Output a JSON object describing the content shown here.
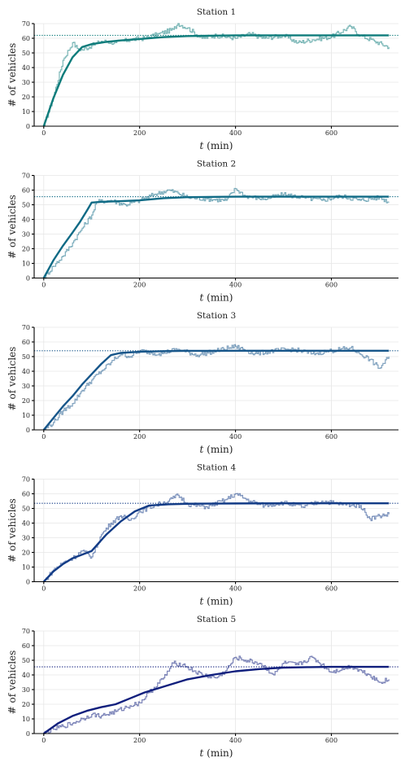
{
  "colors": {
    "station_1": "#0e7c7b",
    "station_2": "#0f6a85",
    "station_3": "#17568a",
    "station_4": "#123b86",
    "station_5": "#101f7d"
  },
  "chart_data": [
    {
      "type": "line",
      "title": "Station 1",
      "xlabel": "t (min)",
      "ylabel": "# of vehicles",
      "xlim": [
        -20,
        740
      ],
      "ylim": [
        0,
        70
      ],
      "xticks": [
        0,
        200,
        400,
        600
      ],
      "yticks": [
        0,
        10,
        20,
        30,
        40,
        50,
        60,
        70
      ],
      "grid": true,
      "reference_level": 62,
      "mean_curve": {
        "x": [
          0,
          20,
          40,
          60,
          80,
          100,
          130,
          160,
          200,
          250,
          300,
          400,
          500,
          600,
          720
        ],
        "y": [
          0,
          19,
          35,
          47,
          54,
          56,
          57.5,
          58.5,
          59.5,
          60.8,
          61.5,
          62,
          62,
          62,
          62
        ]
      },
      "simulation": {
        "x": [
          0,
          20,
          40,
          60,
          70,
          80,
          100,
          120,
          150,
          180,
          210,
          240,
          270,
          280,
          300,
          330,
          360,
          400,
          430,
          460,
          500,
          530,
          560,
          600,
          640,
          660,
          690,
          720
        ],
        "y": [
          0,
          20,
          45,
          57,
          53,
          52,
          55,
          58,
          57,
          59,
          60,
          63,
          66,
          70,
          67,
          60,
          62,
          60,
          63,
          60,
          62,
          57,
          59,
          61,
          68,
          62,
          58,
          54
        ]
      }
    },
    {
      "type": "line",
      "title": "Station 2",
      "xlabel": "t (min)",
      "ylabel": "# of vehicles",
      "xlim": [
        -20,
        740
      ],
      "ylim": [
        0,
        70
      ],
      "xticks": [
        0,
        200,
        400,
        600
      ],
      "yticks": [
        0,
        10,
        20,
        30,
        40,
        50,
        60,
        70
      ],
      "grid": true,
      "reference_level": 55.5,
      "mean_curve": {
        "x": [
          0,
          20,
          40,
          60,
          75,
          90,
          100,
          120,
          150,
          200,
          250,
          300,
          400,
          500,
          600,
          720
        ],
        "y": [
          0,
          12,
          22,
          31,
          38,
          46,
          51.5,
          52,
          52.3,
          53,
          54.5,
          55.2,
          55.5,
          55.5,
          55.5,
          55.5
        ]
      },
      "simulation": {
        "x": [
          0,
          20,
          40,
          60,
          80,
          100,
          110,
          140,
          170,
          200,
          230,
          260,
          280,
          300,
          340,
          380,
          400,
          420,
          460,
          500,
          540,
          580,
          620,
          660,
          700,
          720
        ],
        "y": [
          0,
          8,
          15,
          24,
          34,
          43,
          52,
          53,
          50,
          53,
          57,
          60,
          58,
          55,
          54,
          53,
          61,
          56,
          54,
          57,
          55,
          53,
          56,
          53,
          55,
          52
        ]
      }
    },
    {
      "type": "line",
      "title": "Station 3",
      "xlabel": "t (min)",
      "ylabel": "# of vehicles",
      "xlim": [
        -20,
        740
      ],
      "ylim": [
        0,
        70
      ],
      "xticks": [
        0,
        200,
        400,
        600
      ],
      "yticks": [
        0,
        10,
        20,
        30,
        40,
        50,
        60,
        70
      ],
      "grid": true,
      "reference_level": 54,
      "mean_curve": {
        "x": [
          0,
          20,
          40,
          60,
          80,
          100,
          120,
          140,
          160,
          200,
          250,
          300,
          400,
          500,
          600,
          720
        ],
        "y": [
          0,
          8,
          16,
          23,
          31,
          38,
          45,
          51,
          52.5,
          53.3,
          53.7,
          53.9,
          54,
          54,
          54,
          54
        ]
      },
      "simulation": {
        "x": [
          0,
          20,
          40,
          60,
          80,
          100,
          120,
          140,
          160,
          180,
          200,
          240,
          280,
          320,
          360,
          400,
          440,
          480,
          520,
          560,
          600,
          640,
          680,
          700,
          720
        ],
        "y": [
          0,
          5,
          13,
          18,
          27,
          34,
          40,
          46,
          52,
          50,
          54,
          52,
          55,
          51,
          54,
          57,
          52,
          54,
          55,
          52,
          54,
          56,
          48,
          42,
          50
        ]
      }
    },
    {
      "type": "line",
      "title": "Station 4",
      "xlabel": "t (min)",
      "ylabel": "# of vehicles",
      "xlim": [
        -20,
        740
      ],
      "ylim": [
        0,
        70
      ],
      "xticks": [
        0,
        200,
        400,
        600
      ],
      "yticks": [
        0,
        10,
        20,
        30,
        40,
        50,
        60,
        70
      ],
      "grid": true,
      "reference_level": 53.5,
      "mean_curve": {
        "x": [
          0,
          20,
          40,
          60,
          80,
          100,
          130,
          160,
          190,
          220,
          260,
          300,
          400,
          500,
          600,
          720
        ],
        "y": [
          0,
          7,
          12,
          16,
          18.5,
          21,
          32,
          41,
          48,
          52,
          52.8,
          53.2,
          53.4,
          53.5,
          53.5,
          53.5
        ]
      },
      "simulation": {
        "x": [
          0,
          20,
          40,
          60,
          80,
          100,
          120,
          140,
          160,
          180,
          200,
          230,
          260,
          280,
          300,
          340,
          380,
          400,
          430,
          460,
          500,
          540,
          580,
          620,
          660,
          680,
          700,
          720
        ],
        "y": [
          0,
          8,
          13,
          16,
          21,
          17,
          32,
          40,
          45,
          42,
          48,
          52,
          55,
          59,
          53,
          51,
          56,
          60,
          55,
          52,
          54,
          51,
          55,
          53,
          52,
          43,
          45,
          46
        ]
      }
    },
    {
      "type": "line",
      "title": "Station 5",
      "xlabel": "t (min)",
      "ylabel": "# of vehicles",
      "xlim": [
        -20,
        740
      ],
      "ylim": [
        0,
        70
      ],
      "xticks": [
        0,
        200,
        400,
        600
      ],
      "yticks": [
        0,
        10,
        20,
        30,
        40,
        50,
        60,
        70
      ],
      "grid": true,
      "reference_level": 45.5,
      "mean_curve": {
        "x": [
          0,
          30,
          60,
          90,
          120,
          150,
          180,
          210,
          250,
          300,
          350,
          400,
          450,
          500,
          550,
          600,
          650,
          720
        ],
        "y": [
          0,
          7,
          12,
          15.5,
          18,
          20,
          24,
          28,
          32,
          37,
          40,
          42.5,
          44,
          45,
          45.3,
          45.5,
          45.5,
          45.5
        ]
      },
      "simulation": {
        "x": [
          0,
          20,
          40,
          60,
          80,
          100,
          120,
          150,
          180,
          200,
          220,
          250,
          270,
          290,
          300,
          330,
          360,
          380,
          400,
          420,
          450,
          480,
          500,
          530,
          560,
          580,
          600,
          640,
          680,
          700,
          720
        ],
        "y": [
          0,
          3,
          5,
          7,
          10,
          13,
          12,
          15,
          19,
          21,
          28,
          38,
          48,
          47,
          45,
          40,
          38,
          43,
          52,
          50,
          48,
          40,
          48,
          47,
          52,
          47,
          42,
          46,
          40,
          35,
          37
        ]
      }
    }
  ]
}
